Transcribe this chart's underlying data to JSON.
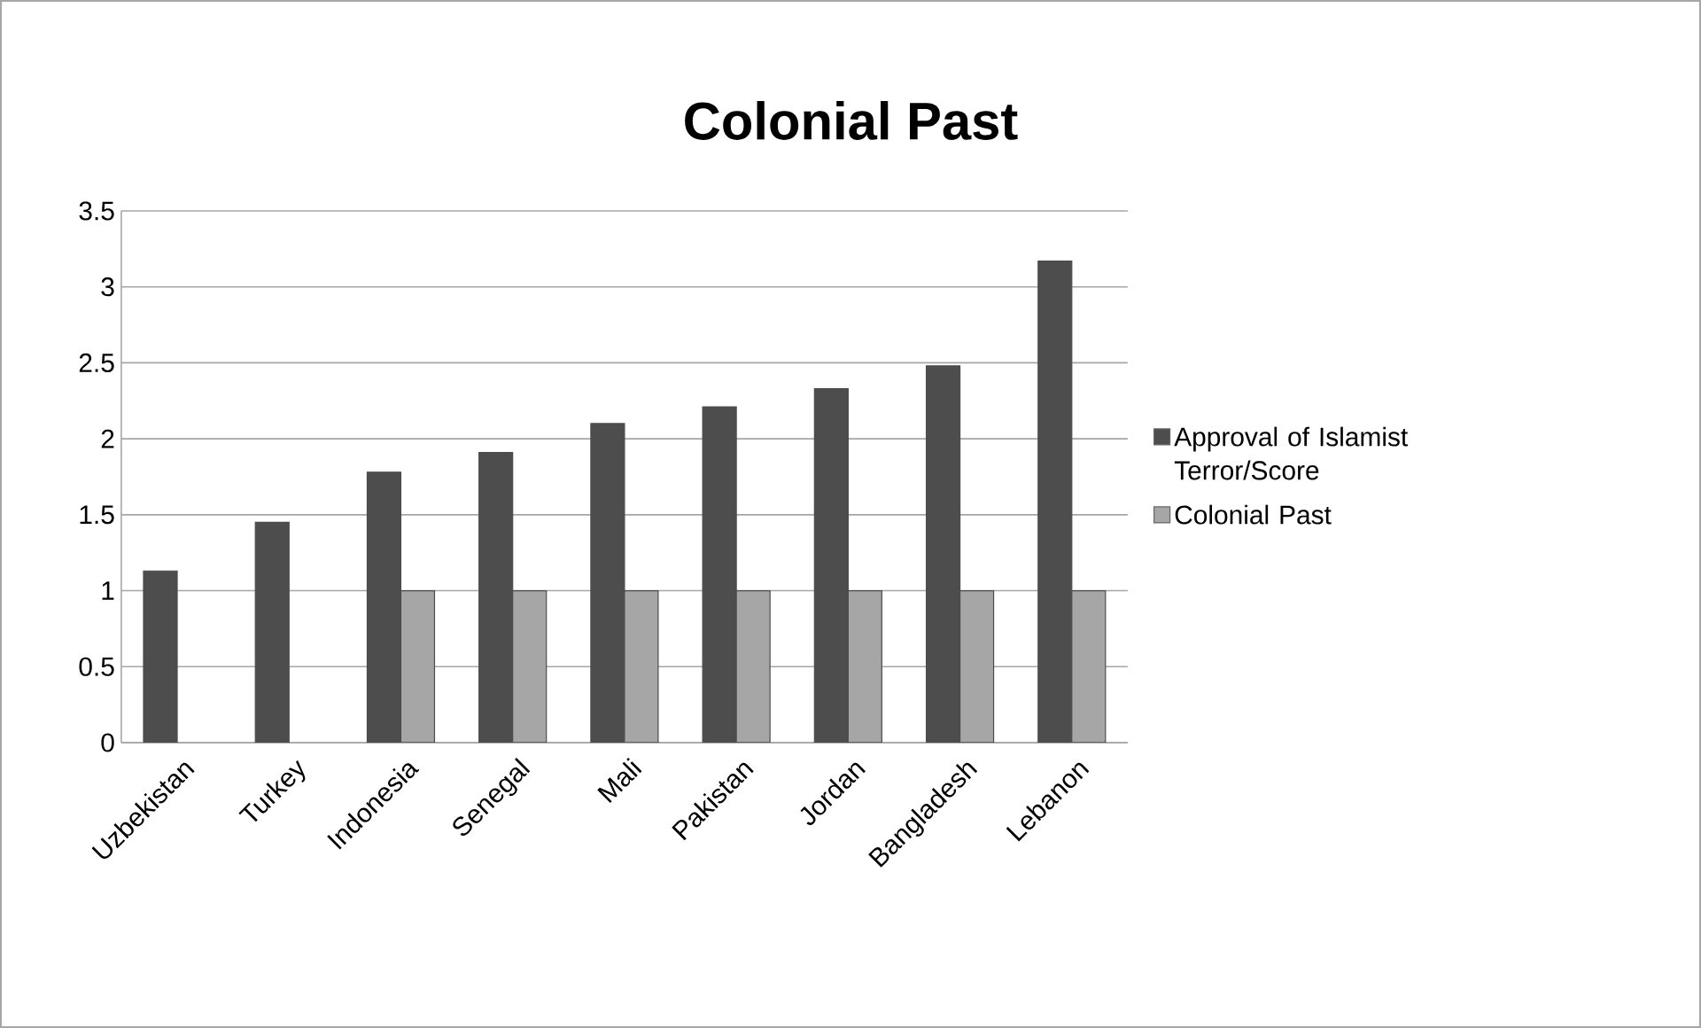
{
  "chart_data": {
    "type": "bar",
    "title": "Colonial Past",
    "categories": [
      "Uzbekistan",
      "Turkey",
      "Indonesia",
      "Senegal",
      "Mali",
      "Pakistan",
      "Jordan",
      "Bangladesh",
      "Lebanon"
    ],
    "series": [
      {
        "name": "Approval of Islamist Terror/Score",
        "color": "#4d4d4d",
        "values": [
          1.13,
          1.45,
          1.78,
          1.91,
          2.1,
          2.21,
          2.33,
          2.48,
          3.17
        ]
      },
      {
        "name": "Colonial Past",
        "color": "#a6a6a6",
        "values": [
          null,
          null,
          1,
          1,
          1,
          1,
          1,
          1,
          1
        ]
      }
    ],
    "ylim": [
      0,
      3.5
    ],
    "yticks": [
      0,
      0.5,
      1,
      1.5,
      2,
      2.5,
      3,
      3.5
    ],
    "grid": "y",
    "legend": "right"
  }
}
